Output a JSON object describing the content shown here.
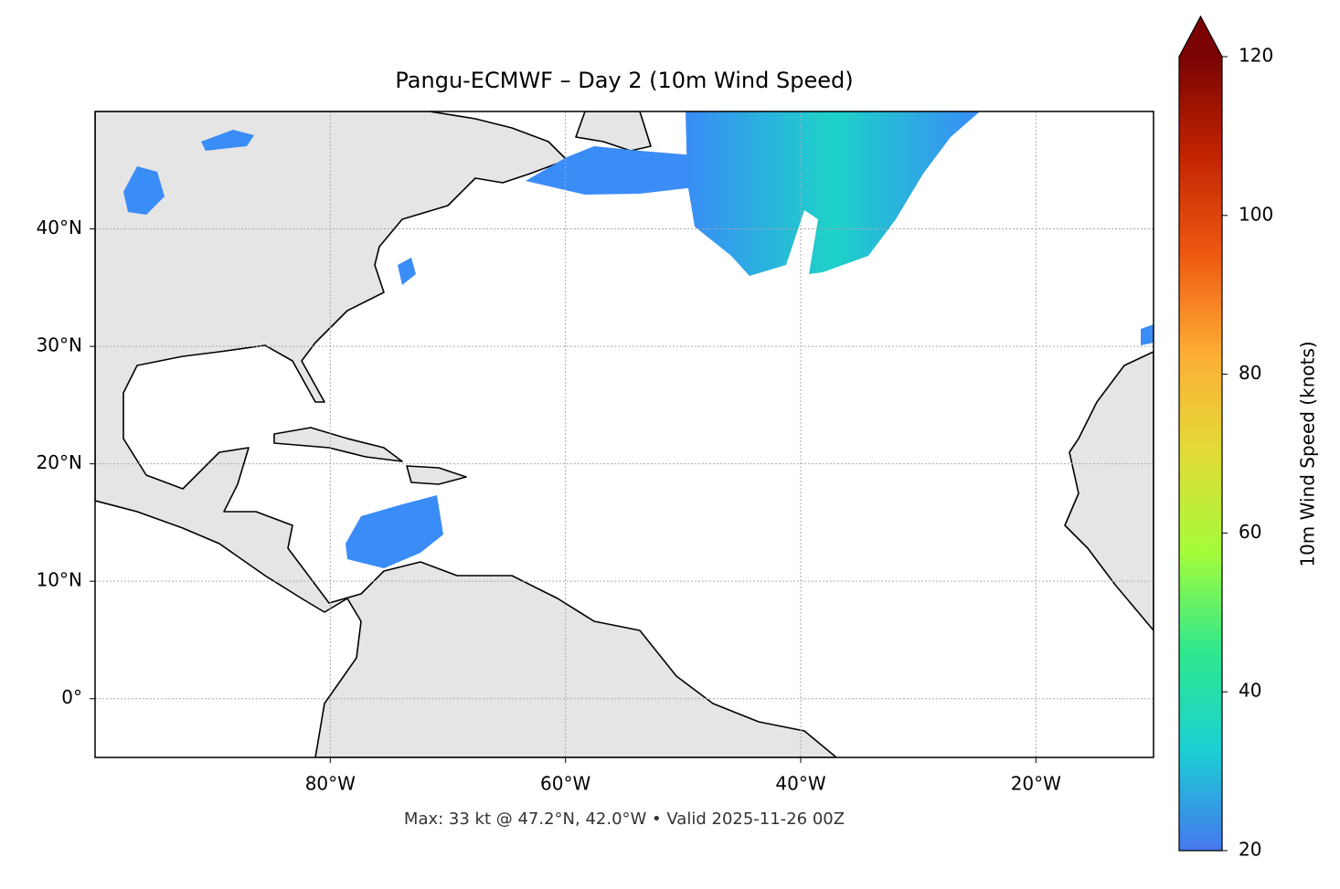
{
  "chart_data": {
    "type": "map",
    "title": "Pangu-ECMWF – Day 2 (10m Wind Speed)",
    "annotation": "Max: 33 kt @ 47.2°N, 42.0°W • Valid 2025-11-26 00Z",
    "xlim": [
      -100,
      -10
    ],
    "ylim": [
      -5,
      50
    ],
    "xticks": [
      {
        "value": -80,
        "label": "80°W"
      },
      {
        "value": -60,
        "label": "60°W"
      },
      {
        "value": -40,
        "label": "40°W"
      },
      {
        "value": -20,
        "label": "20°W"
      }
    ],
    "yticks": [
      {
        "value": 0,
        "label": "0°"
      },
      {
        "value": 10,
        "label": "10°N"
      },
      {
        "value": 20,
        "label": "20°N"
      },
      {
        "value": 30,
        "label": "30°N"
      },
      {
        "value": 40,
        "label": "40°N"
      }
    ],
    "grid": true,
    "colorbar": {
      "label": "10m Wind Speed (knots)",
      "lim": [
        20,
        120
      ],
      "ticks": [
        20,
        40,
        60,
        80,
        100,
        120
      ],
      "colormap": [
        "#4777ef",
        "#1bcfd4",
        "#2ee88d",
        "#a4fc3b",
        "#e2dc38",
        "#fdae35",
        "#ef5911",
        "#c22402",
        "#7a0403"
      ]
    }
  }
}
